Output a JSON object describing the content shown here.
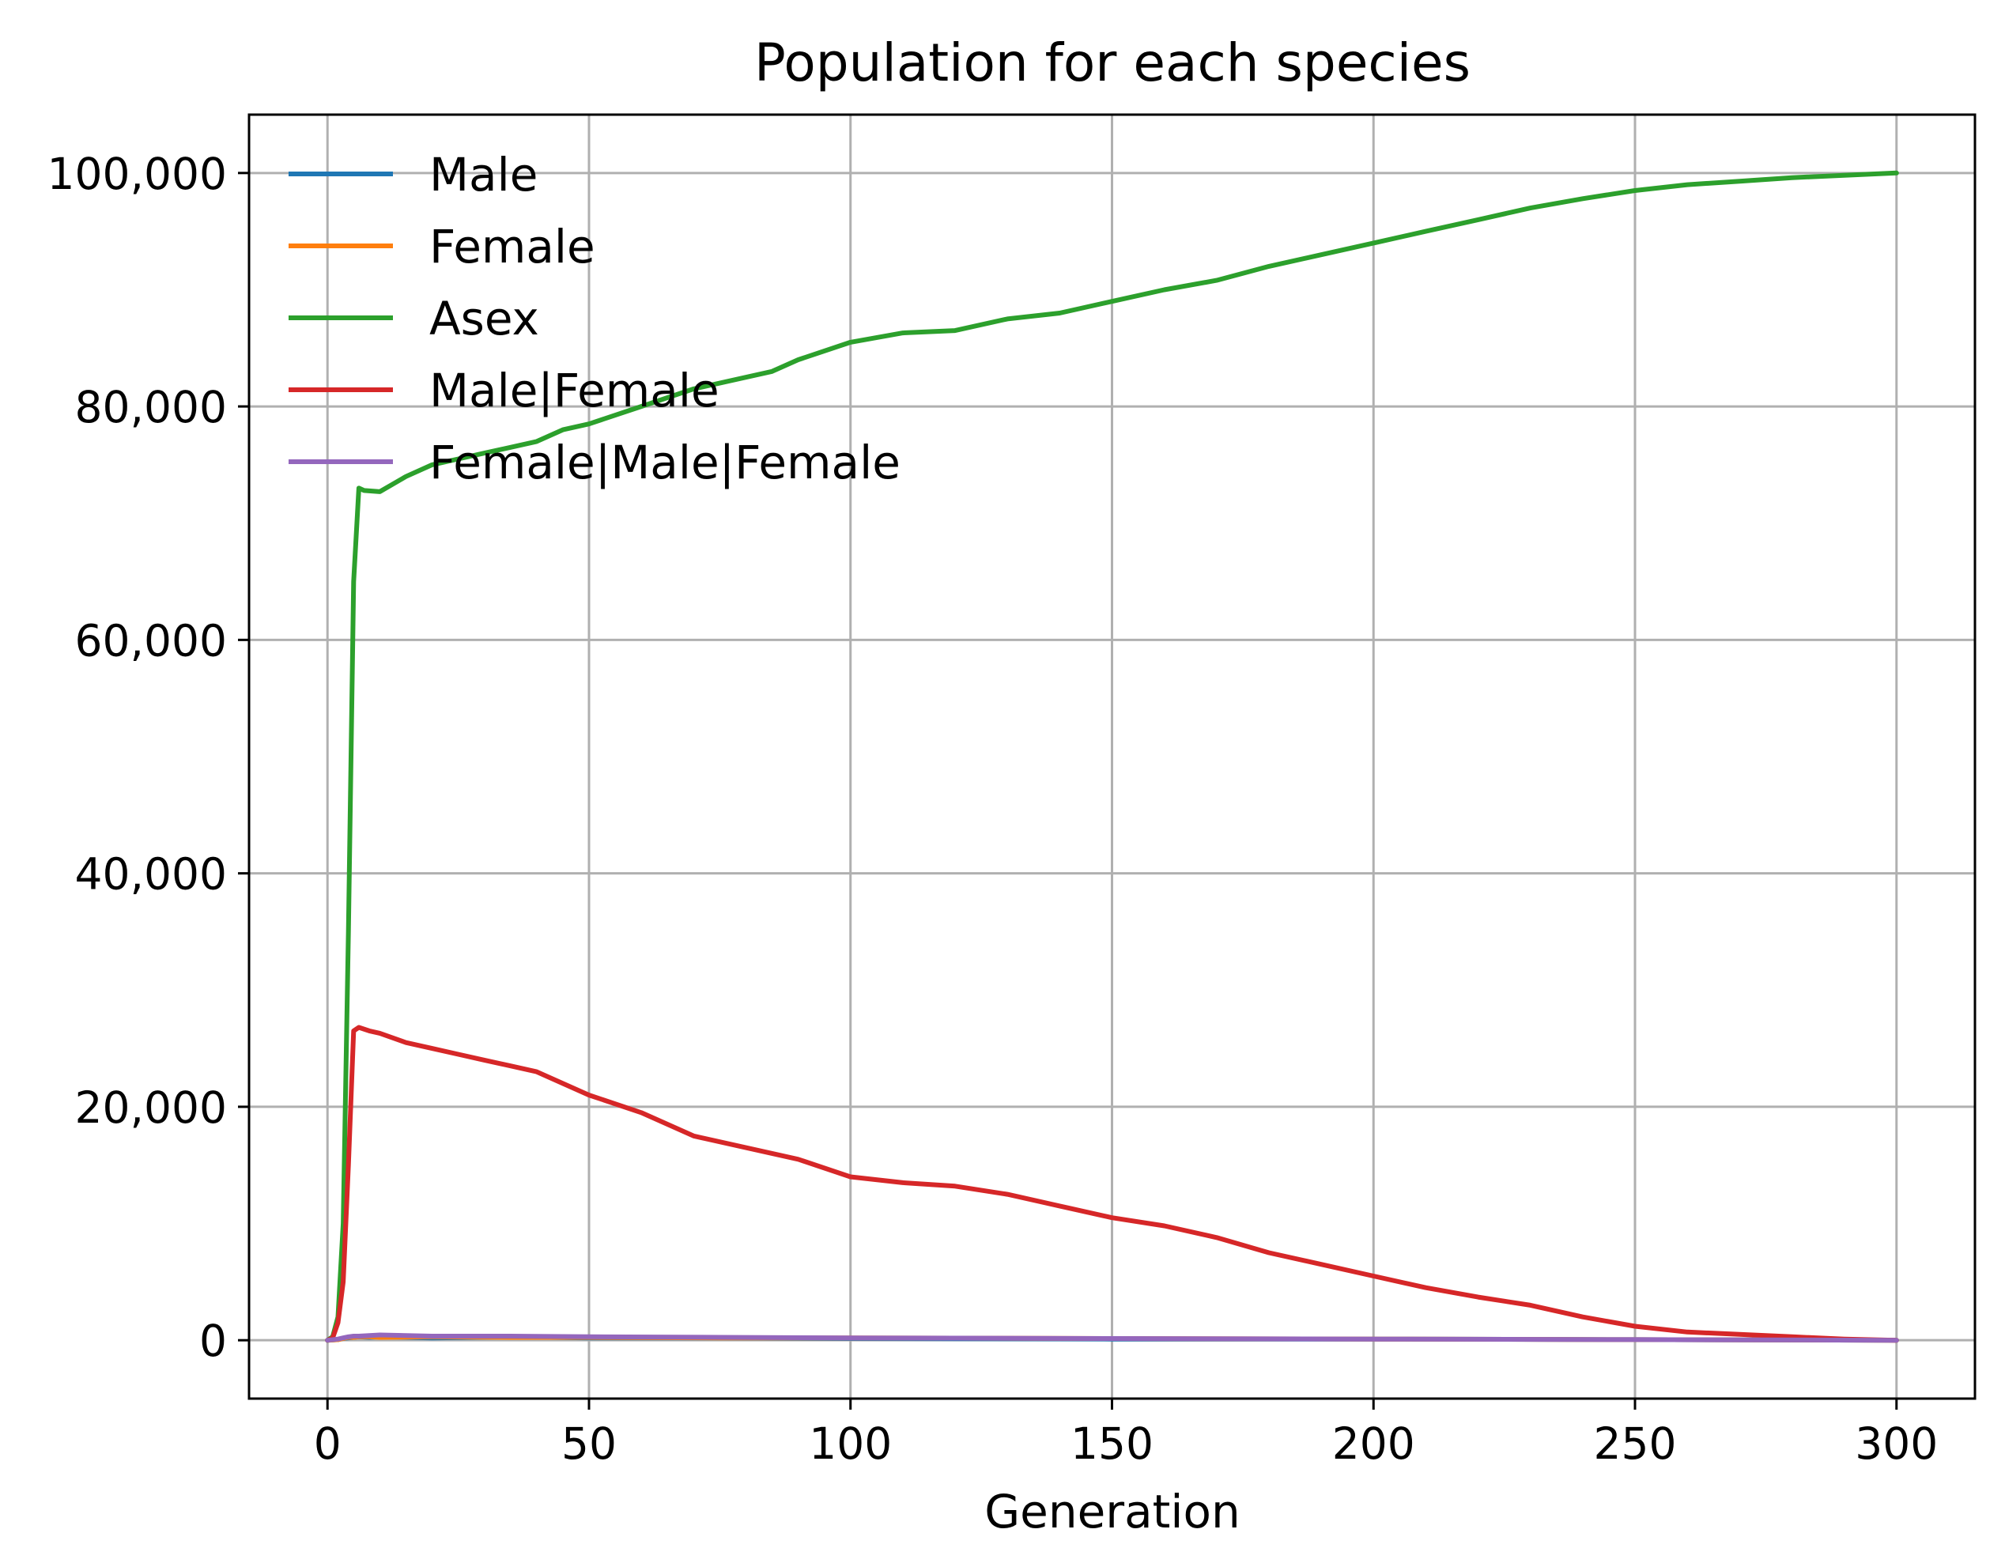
{
  "chart_data": {
    "type": "line",
    "title": "Population for each species",
    "xlabel": "Generation",
    "ylabel": "",
    "xlim": [
      -15,
      315
    ],
    "ylim": [
      -5000,
      105000
    ],
    "xticks": [
      0,
      50,
      100,
      150,
      200,
      250,
      300
    ],
    "xtick_labels": [
      "0",
      "50",
      "100",
      "150",
      "200",
      "250",
      "300"
    ],
    "yticks": [
      0,
      20000,
      40000,
      60000,
      80000,
      100000
    ],
    "ytick_labels": [
      "0",
      "20,000",
      "40,000",
      "60,000",
      "80,000",
      "100,000"
    ],
    "grid": true,
    "legend_position": "upper-left",
    "series": [
      {
        "name": "Male",
        "color": "#1f77b4",
        "x": [
          0,
          2,
          3,
          4,
          5,
          6,
          8,
          10,
          20,
          35,
          50,
          75,
          100,
          150,
          200,
          250,
          300
        ],
        "y": [
          0,
          50,
          150,
          200,
          250,
          300,
          250,
          300,
          200,
          300,
          200,
          200,
          150,
          100,
          100,
          50,
          0
        ]
      },
      {
        "name": "Female",
        "color": "#ff7f0e",
        "x": [
          0,
          2,
          3,
          4,
          5,
          6,
          8,
          10,
          20,
          35,
          50,
          75,
          100,
          150,
          200,
          250,
          300
        ],
        "y": [
          0,
          50,
          150,
          250,
          250,
          300,
          300,
          250,
          300,
          250,
          250,
          200,
          200,
          150,
          100,
          50,
          0
        ]
      },
      {
        "name": "Asex",
        "color": "#2ca02c",
        "x": [
          0,
          1,
          2,
          3,
          4,
          5,
          6,
          7,
          10,
          15,
          20,
          25,
          30,
          35,
          40,
          45,
          50,
          60,
          70,
          80,
          85,
          90,
          100,
          110,
          120,
          130,
          140,
          150,
          160,
          170,
          180,
          190,
          200,
          210,
          220,
          230,
          240,
          250,
          260,
          270,
          280,
          290,
          300
        ],
        "y": [
          0,
          300,
          2000,
          10000,
          35000,
          65000,
          73000,
          72800,
          72700,
          74000,
          75000,
          75500,
          76000,
          76500,
          77000,
          78000,
          78500,
          80000,
          81500,
          82500,
          83000,
          84000,
          85500,
          86300,
          86500,
          87500,
          88000,
          89000,
          90000,
          90800,
          92000,
          93000,
          94000,
          95000,
          96000,
          97000,
          97800,
          98500,
          99000,
          99300,
          99600,
          99800,
          100000
        ]
      },
      {
        "name": "Male|Female",
        "color": "#d62728",
        "x": [
          0,
          1,
          2,
          3,
          4,
          5,
          6,
          8,
          10,
          15,
          20,
          25,
          30,
          35,
          40,
          45,
          50,
          60,
          70,
          80,
          90,
          100,
          110,
          120,
          130,
          140,
          150,
          160,
          170,
          180,
          190,
          200,
          210,
          220,
          230,
          240,
          250,
          260,
          270,
          280,
          290,
          300
        ],
        "y": [
          0,
          200,
          1500,
          5000,
          15000,
          26500,
          26800,
          26500,
          26300,
          25500,
          25000,
          24500,
          24000,
          23500,
          23000,
          22000,
          21000,
          19500,
          17500,
          16500,
          15500,
          14000,
          13500,
          13200,
          12500,
          11500,
          10500,
          9800,
          8800,
          7500,
          6500,
          5500,
          4500,
          3700,
          3000,
          2000,
          1200,
          700,
          500,
          300,
          100,
          0
        ]
      },
      {
        "name": "Female|Male|Female",
        "color": "#9467bd",
        "x": [
          0,
          2,
          3,
          4,
          5,
          6,
          8,
          10,
          20,
          35,
          50,
          75,
          100,
          150,
          200,
          250,
          300
        ],
        "y": [
          0,
          100,
          200,
          300,
          350,
          350,
          400,
          450,
          350,
          350,
          300,
          250,
          200,
          150,
          100,
          50,
          0
        ]
      }
    ]
  }
}
